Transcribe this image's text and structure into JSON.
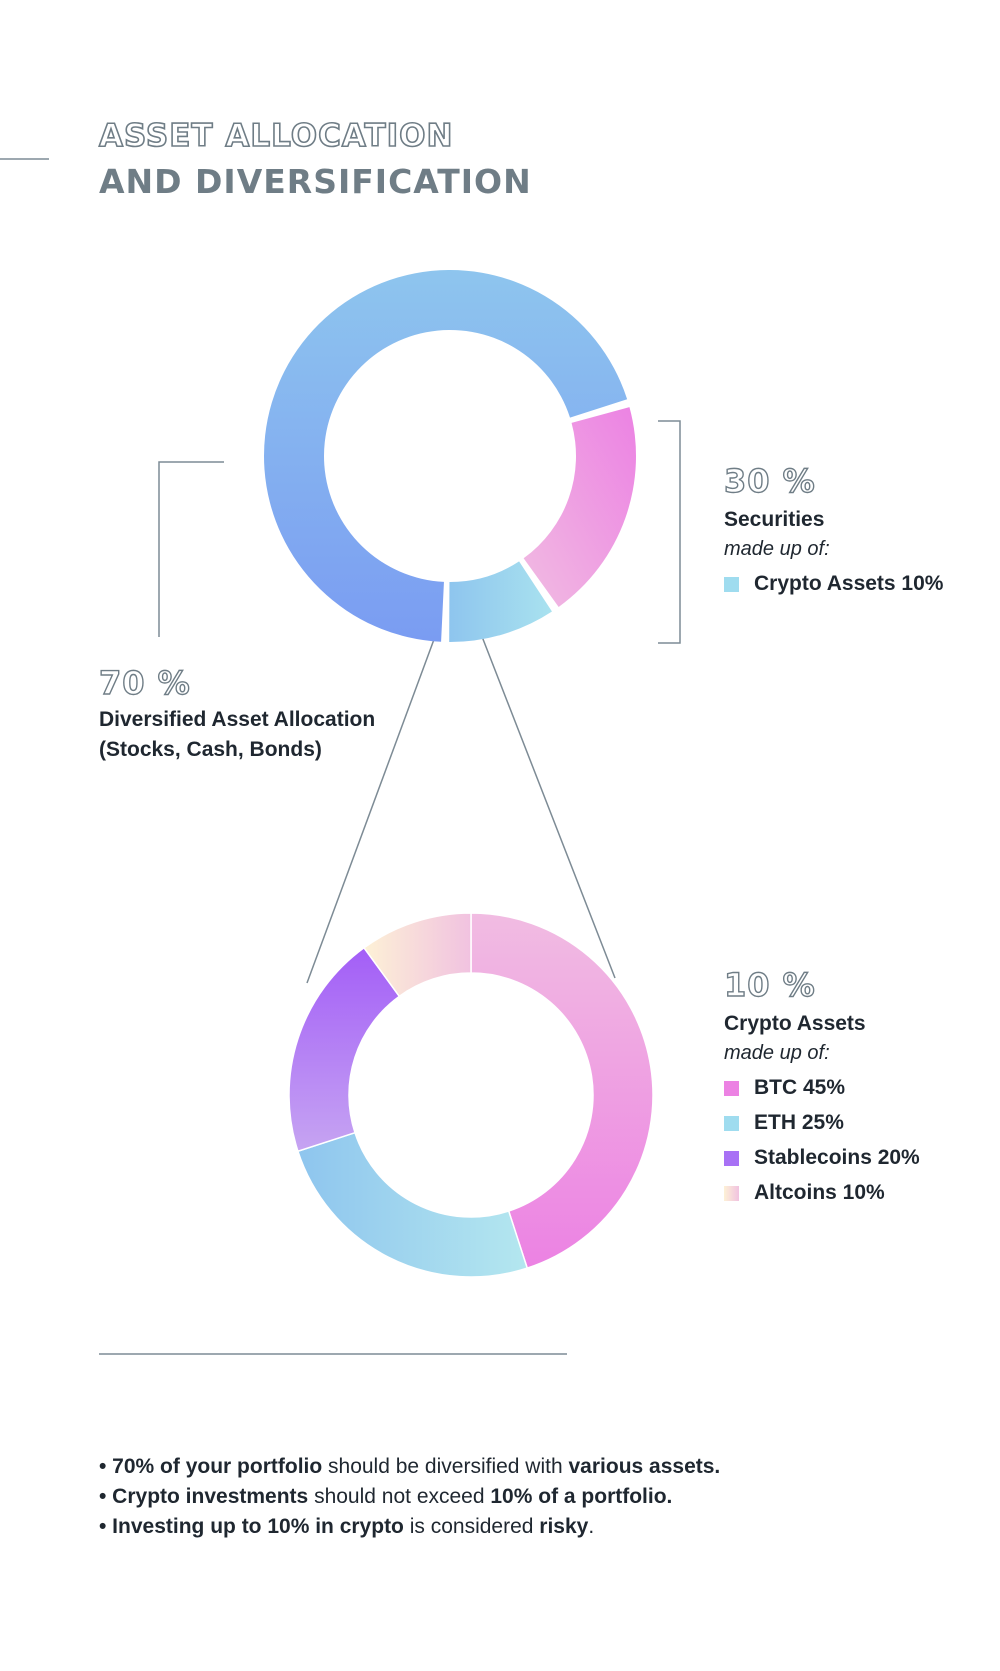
{
  "header": {
    "title_line1": "ASSET ALLOCATION",
    "title_line2": "AND DIVERSIFICATION"
  },
  "colors": {
    "heading_gray": "#6f7d86",
    "blue_light": "#8ec5ee",
    "blue": "#7a9cf2",
    "pink": "#ec82e3",
    "pink_light": "#f1bce2",
    "cyan": "#9fdcef",
    "purple": "#a871f5",
    "cream": "#fcecd8",
    "text": "#1f2730"
  },
  "chart_data": [
    {
      "type": "pie",
      "slices": [
        {
          "label": "Diversified Asset Allocation (Stocks, Cash, Bonds)",
          "value": 70
        },
        {
          "label": "Securities",
          "value": 20
        },
        {
          "label": "Crypto Assets",
          "value": 10
        }
      ]
    },
    {
      "type": "pie",
      "slices": [
        {
          "label": "BTC",
          "value": 45
        },
        {
          "label": "ETH",
          "value": 25
        },
        {
          "label": "Stablecoins",
          "value": 20
        },
        {
          "label": "Altcoins",
          "value": 10
        }
      ]
    }
  ],
  "allocation": {
    "diversified": {
      "percent": "70 %",
      "label_line1": "Diversified Asset Allocation",
      "label_line2": "(Stocks, Cash, Bonds)"
    },
    "securities": {
      "percent": "30 %",
      "label": "Securities",
      "made_up_of": "made up of:",
      "legend": [
        {
          "text": "Crypto Assets 10%",
          "color": "#9fdcef"
        }
      ]
    }
  },
  "crypto": {
    "percent": "10 %",
    "label": "Crypto Assets",
    "made_up_of": "made up of:",
    "legend": [
      {
        "text": "BTC 45%",
        "color": "#ec82e3"
      },
      {
        "text": "ETH 25%",
        "color": "#9fdcef"
      },
      {
        "text": "Stablecoins 20%",
        "color": "#a871f5"
      },
      {
        "text": "Altcoins 10%",
        "color": "#fcecd8"
      }
    ]
  },
  "notes": [
    {
      "p1": "• 70% of your portfolio",
      "p2": " should be diversified with ",
      "p3": "various assets.",
      "p4": ""
    },
    {
      "p1": "• Crypto investments",
      "p2": " should not exceed ",
      "p3": "10% of a portfolio.",
      "p4": ""
    },
    {
      "p1": "• Investing up to 10% in crypto",
      "p2": " is considered ",
      "p3": "risky",
      "p4": "."
    }
  ]
}
